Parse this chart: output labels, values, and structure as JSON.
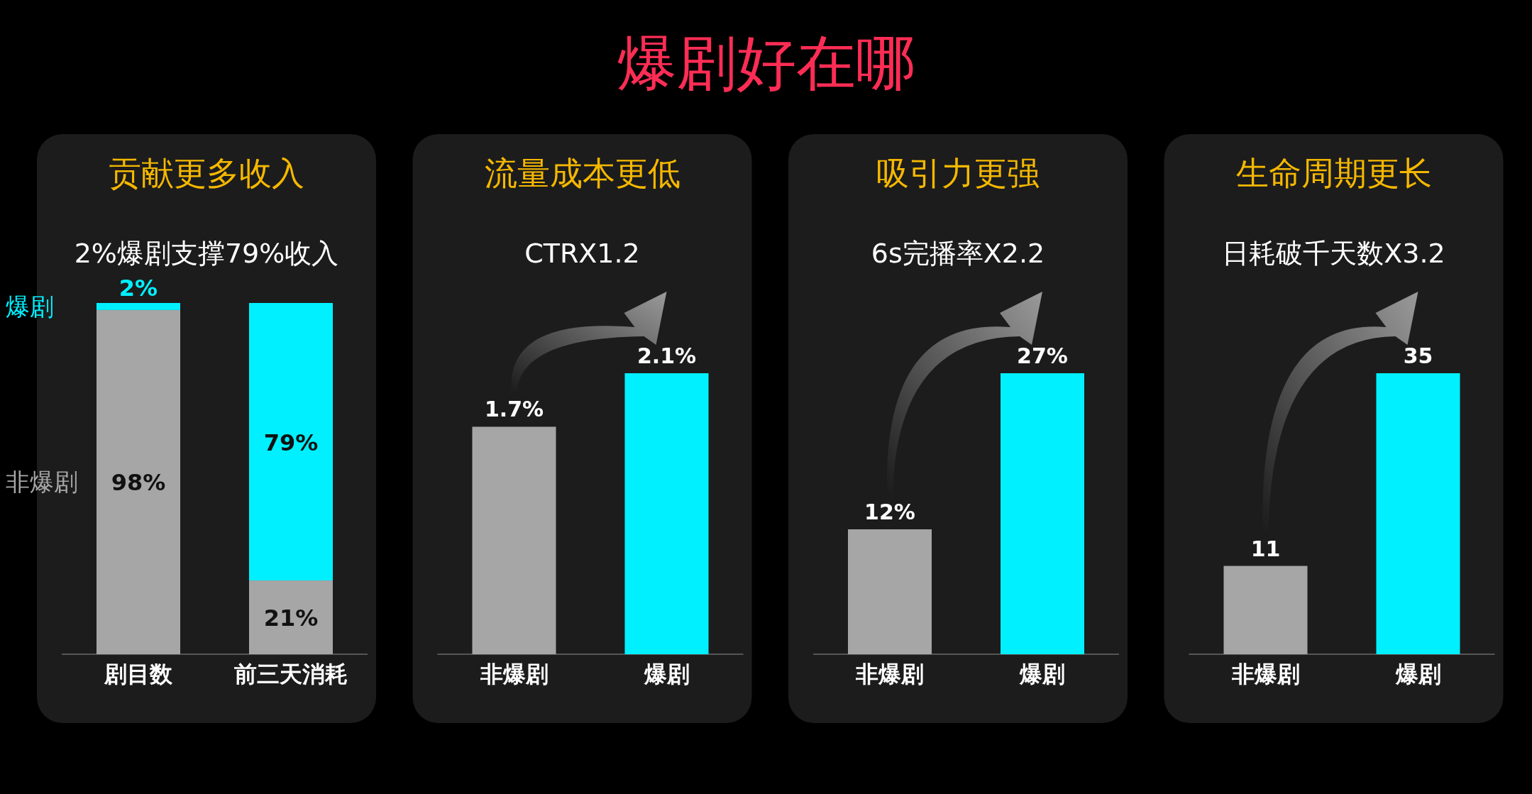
{
  "chart_data": [
    {
      "type": "other",
      "title": "爆剧好在哪"
    },
    {
      "type": "bar",
      "title": "贡献更多收入",
      "subtitle": "2%爆剧支撑79%收入",
      "categories": [
        "剧目数",
        "前三天消耗"
      ],
      "stacked": true,
      "series": [
        {
          "name": "非爆剧",
          "color": "#a6a6a6",
          "values": [
            98,
            21
          ],
          "value_labels": [
            "98%",
            "21%"
          ]
        },
        {
          "name": "爆剧",
          "color": "#00f0ff",
          "values": [
            2,
            79
          ],
          "value_labels": [
            "2%",
            "79%"
          ]
        }
      ]
    },
    {
      "type": "bar",
      "title": "流量成本更低",
      "subtitle": "CTRX1.2",
      "categories": [
        "非爆剧",
        "爆剧"
      ],
      "values": [
        1.7,
        2.1
      ],
      "colors": [
        "#a6a6a6",
        "#00f0ff"
      ],
      "value_labels": [
        "1.7%",
        "2.1%"
      ]
    },
    {
      "type": "bar",
      "title": "吸引力更强",
      "subtitle": "6s完播率X2.2",
      "categories": [
        "非爆剧",
        "爆剧"
      ],
      "values": [
        12,
        27
      ],
      "colors": [
        "#a6a6a6",
        "#00f0ff"
      ],
      "value_labels": [
        "12%",
        "27%"
      ]
    },
    {
      "type": "bar",
      "title": "生命周期更长",
      "subtitle": "日耗破千天数X3.2",
      "categories": [
        "非爆剧",
        "爆剧"
      ],
      "values": [
        11,
        35
      ],
      "colors": [
        "#a6a6a6",
        "#00f0ff"
      ],
      "data_labels": true
    }
  ]
}
